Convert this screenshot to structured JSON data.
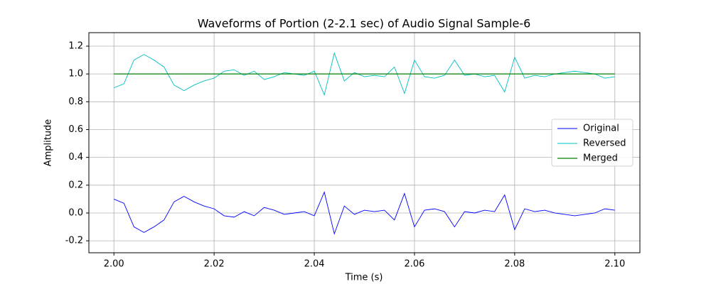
{
  "chart_data": {
    "type": "line",
    "title": "Waveforms of Portion (2-2.1 sec) of Audio Signal Sample-6",
    "xlabel": "Time (s)",
    "ylabel": "Amplitude",
    "x": [
      2.0,
      2.002,
      2.004,
      2.006,
      2.008,
      2.01,
      2.012,
      2.014,
      2.016,
      2.018,
      2.02,
      2.022,
      2.024,
      2.026,
      2.028,
      2.03,
      2.032,
      2.034,
      2.036,
      2.038,
      2.04,
      2.042,
      2.044,
      2.046,
      2.048,
      2.05,
      2.052,
      2.054,
      2.056,
      2.058,
      2.06,
      2.062,
      2.064,
      2.066,
      2.068,
      2.07,
      2.072,
      2.074,
      2.076,
      2.078,
      2.08,
      2.082,
      2.084,
      2.086,
      2.088,
      2.09,
      2.092,
      2.094,
      2.096,
      2.098,
      2.1
    ],
    "series": [
      {
        "name": "Original",
        "color": "#0000ff",
        "values": [
          0.1,
          0.07,
          -0.1,
          -0.14,
          -0.1,
          -0.05,
          0.08,
          0.12,
          0.08,
          0.05,
          0.03,
          -0.02,
          -0.03,
          0.01,
          -0.02,
          0.04,
          0.02,
          -0.01,
          0.0,
          0.01,
          -0.02,
          0.15,
          -0.15,
          0.05,
          -0.01,
          0.02,
          0.01,
          0.02,
          -0.05,
          0.14,
          -0.1,
          0.02,
          0.03,
          0.01,
          -0.1,
          0.01,
          0.0,
          0.02,
          0.01,
          0.13,
          -0.12,
          0.03,
          0.01,
          0.02,
          0.0,
          -0.01,
          -0.02,
          -0.01,
          0.0,
          0.03,
          0.02
        ]
      },
      {
        "name": "Reversed",
        "color": "#00bfbf",
        "values": [
          0.9,
          0.93,
          1.1,
          1.14,
          1.1,
          1.05,
          0.92,
          0.88,
          0.92,
          0.95,
          0.97,
          1.02,
          1.03,
          0.99,
          1.02,
          0.96,
          0.98,
          1.01,
          1.0,
          0.99,
          1.02,
          0.85,
          1.15,
          0.95,
          1.01,
          0.98,
          0.99,
          0.98,
          1.05,
          0.86,
          1.1,
          0.98,
          0.97,
          0.99,
          1.1,
          0.99,
          1.0,
          0.98,
          0.99,
          0.87,
          1.12,
          0.97,
          0.99,
          0.98,
          1.0,
          1.01,
          1.02,
          1.01,
          1.0,
          0.97,
          0.98
        ]
      },
      {
        "name": "Merged",
        "color": "#008000",
        "values": [
          1,
          1,
          1,
          1,
          1,
          1,
          1,
          1,
          1,
          1,
          1,
          1,
          1,
          1,
          1,
          1,
          1,
          1,
          1,
          1,
          1,
          1,
          1,
          1,
          1,
          1,
          1,
          1,
          1,
          1,
          1,
          1,
          1,
          1,
          1,
          1,
          1,
          1,
          1,
          1,
          1,
          1,
          1,
          1,
          1,
          1,
          1,
          1,
          1,
          1,
          1
        ]
      }
    ],
    "xlim": [
      1.995,
      2.105
    ],
    "xticks": [
      {
        "value": 2,
        "label": "2.00"
      },
      2.02,
      2.04,
      2.06,
      2.08,
      {
        "value": 2.1,
        "label": "2.10"
      }
    ],
    "ylim": [
      -0.286,
      1.297
    ],
    "yticks": [
      -0.2,
      {
        "value": 0,
        "label": "0.0"
      },
      0.2,
      0.4,
      0.6,
      0.8,
      {
        "value": 1,
        "label": "1.0"
      },
      1.2
    ],
    "grid": true,
    "legend": "center right"
  }
}
